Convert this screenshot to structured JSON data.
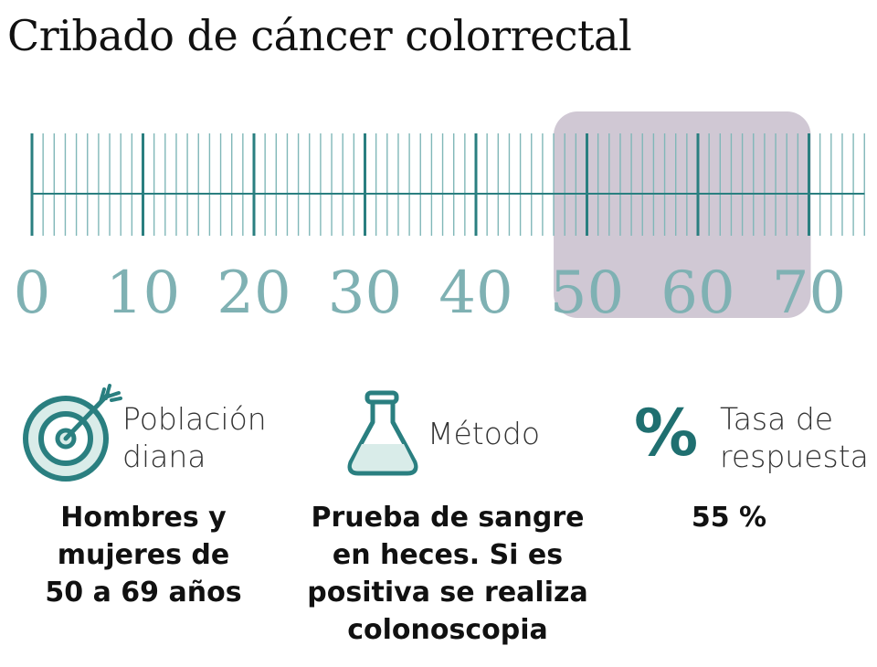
{
  "title": "Cribado de cáncer colorrectal",
  "colors": {
    "teal": "#2a7f80",
    "teal_light": "#80b7b8",
    "number": "#7fb1b3",
    "highlight": "#b3a6b9",
    "icon_fill": "#d9ece9"
  },
  "ruler": {
    "min": 0,
    "max": 75,
    "labels": [
      "0",
      "10",
      "20",
      "30",
      "40",
      "50",
      "60",
      "70"
    ],
    "highlight_range": [
      47,
      70
    ]
  },
  "sections": [
    {
      "icon": "target-icon",
      "label_lines": [
        "Población",
        "diana"
      ],
      "text_lines": [
        "Hombres y",
        "mujeres de",
        "50 a 69 años"
      ]
    },
    {
      "icon": "flask-icon",
      "label_lines": [
        "Método"
      ],
      "text_lines": [
        "Prueba de sangre",
        "en heces. Si es",
        "positiva se realiza",
        "colonoscopia"
      ]
    },
    {
      "icon": "percent-icon",
      "icon_glyph": "%",
      "label_lines": [
        "Tasa de",
        "respuesta"
      ],
      "text_lines": [
        "55 %"
      ]
    }
  ]
}
